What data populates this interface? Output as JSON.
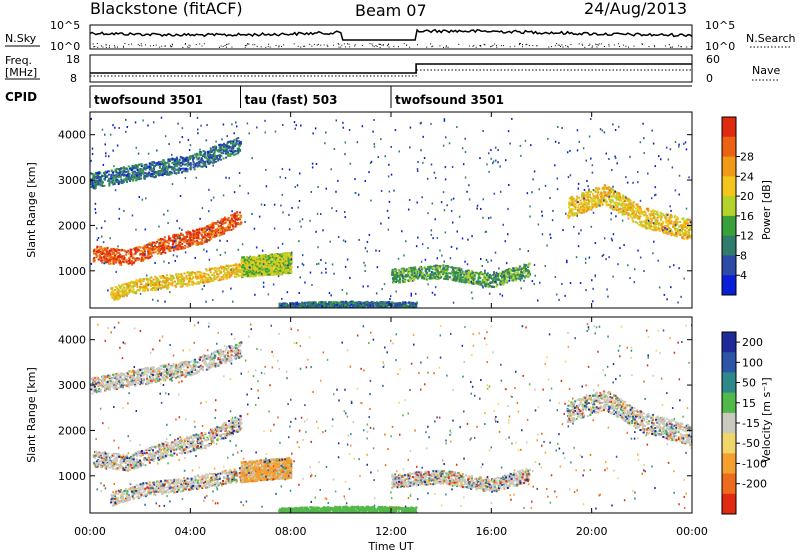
{
  "header": {
    "title": "Blackstone (fitACF)",
    "beam": "Beam 07",
    "date": "24/Aug/2013"
  },
  "noise_panel": {
    "left_label": "N.Sky",
    "right_label": "N.Search",
    "left_ticks": [
      "10^5",
      "10^0"
    ],
    "right_ticks": [
      "10^5",
      "10^0"
    ]
  },
  "freq_panel": {
    "left_label_line1": "Freq.",
    "left_label_line2": "[MHz]",
    "right_label": "Nave",
    "left_ticks": [
      "18",
      "8"
    ],
    "right_ticks": [
      "60",
      "0"
    ]
  },
  "cpid_panel": {
    "label": "CPID",
    "segments": [
      {
        "name": "twofsound 3501",
        "start": 0,
        "end": 6
      },
      {
        "name": "tau (fast) 503",
        "start": 6,
        "end": 12
      },
      {
        "name": "twofsound 3501",
        "start": 12,
        "end": 24
      }
    ]
  },
  "time_axis": {
    "label": "Time UT",
    "ticks": [
      "00:00",
      "04:00",
      "08:00",
      "12:00",
      "16:00",
      "20:00",
      "00:00"
    ]
  },
  "power_panel": {
    "ylabel": "Slant Range [km]",
    "yticks": [
      "1000",
      "2000",
      "3000",
      "4000"
    ],
    "cbar_label": "Power [dB]",
    "cbar_ticks": [
      "4",
      "8",
      "12",
      "16",
      "20",
      "24",
      "28"
    ],
    "cbar_colors": [
      "#0a1ed8",
      "#2e4aa8",
      "#2f7c6a",
      "#3aa13a",
      "#b4d22a",
      "#f2c61a",
      "#f09a18",
      "#ea6212",
      "#df2a10"
    ]
  },
  "velocity_panel": {
    "ylabel": "Slant Range [km]",
    "yticks": [
      "1000",
      "2000",
      "3000",
      "4000"
    ],
    "cbar_label": "Velocity [m s⁻¹]",
    "cbar_ticks": [
      "200",
      "100",
      "50",
      "15",
      "-15",
      "-50",
      "-100",
      "-200"
    ],
    "cbar_colors": [
      "#1f2a9a",
      "#2d55a6",
      "#2e8a8a",
      "#52b84a",
      "#c9c9c0",
      "#f0d66a",
      "#f4a030",
      "#ee6a1c",
      "#e02a12"
    ]
  },
  "chart_data": {
    "type": "heatmap",
    "x_unit": "hours UT",
    "xlim": [
      0,
      24
    ],
    "ylim": [
      180,
      4500
    ],
    "power_bands": [
      {
        "x": [
          0.1,
          1.5,
          3.0,
          4.5,
          6.0
        ],
        "y": [
          1400,
          1300,
          1600,
          1800,
          2200
        ],
        "width": 350,
        "level": 26
      },
      {
        "x": [
          0.8,
          2.0,
          4.0,
          6.0,
          8.0
        ],
        "y": [
          500,
          700,
          850,
          1050,
          1100
        ],
        "width": 300,
        "level": 18
      },
      {
        "x": [
          6.0,
          7.0,
          8.0
        ],
        "y": [
          1100,
          1150,
          1200
        ],
        "width": 450,
        "level": 14
      },
      {
        "x": [
          7.5,
          9.0,
          10.5,
          12.0,
          13.0
        ],
        "y": [
          230,
          260,
          270,
          260,
          250
        ],
        "width": 150,
        "level": 6
      },
      {
        "x": [
          12.0,
          14.0,
          16.0,
          17.5
        ],
        "y": [
          900,
          1000,
          800,
          1050
        ],
        "width": 300,
        "level": 10
      },
      {
        "x": [
          19.0,
          20.5,
          22.0,
          24.0
        ],
        "y": [
          2400,
          2700,
          2200,
          1900
        ],
        "width": 450,
        "level": 18
      },
      {
        "x": [
          0.0,
          2.0,
          4.0,
          6.0
        ],
        "y": [
          3000,
          3200,
          3400,
          3800
        ],
        "width": 350,
        "level": 6
      }
    ]
  }
}
